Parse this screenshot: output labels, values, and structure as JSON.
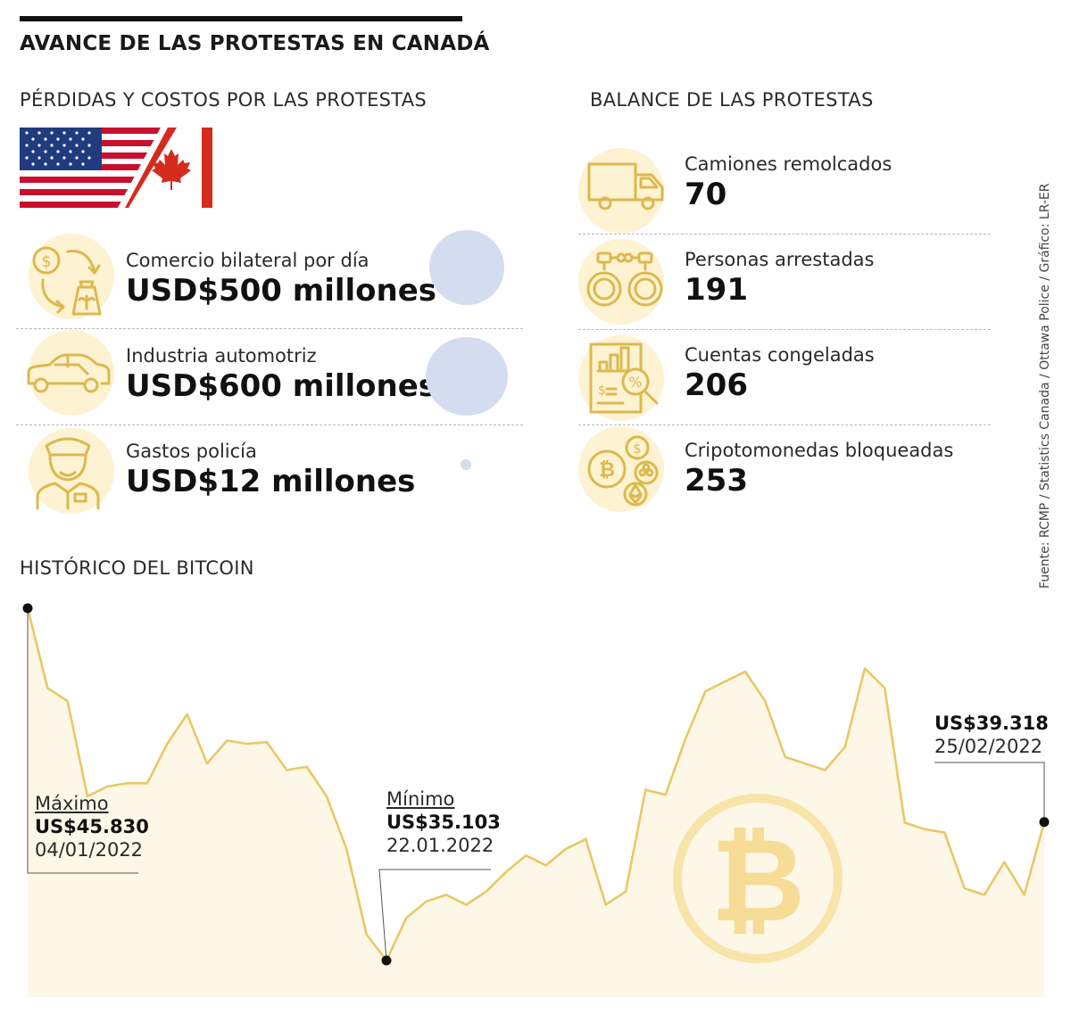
{
  "header": {
    "title": "AVANCE DE LAS PROTESTAS EN CANADÁ"
  },
  "left": {
    "heading": "PÉRDIDAS Y COSTOS POR LAS PROTESTAS",
    "items": [
      {
        "label": "Comercio bilateral por día",
        "value": "USD$500 millones",
        "icon": "trade-exchange-icon"
      },
      {
        "label": "Industria automotriz",
        "value": "USD$600 millones",
        "icon": "car-icon"
      },
      {
        "label": "Gastos policía",
        "value": "USD$12 millones",
        "icon": "police-officer-icon"
      }
    ]
  },
  "right": {
    "heading": "BALANCE DE LAS PROTESTAS",
    "items": [
      {
        "label": "Camiones remolcados",
        "value": "70",
        "icon": "truck-icon"
      },
      {
        "label": "Personas arrestadas",
        "value": "191",
        "icon": "handcuffs-icon"
      },
      {
        "label": "Cuentas congeladas",
        "value": "206",
        "icon": "frozen-accounts-document-icon"
      },
      {
        "label": "Cripotomonedas bloqueadas",
        "value": "253",
        "icon": "cryptocurrency-coins-icon"
      }
    ]
  },
  "source": "Fuente: RCMP / Statistics Canada / Ottawa Police / Gráfico: LR-ER",
  "colors": {
    "accent": "#e8c866",
    "fill": "#fdf7e7",
    "icon": "#dcb94e",
    "icon_bg": "#fdf2d2",
    "bubble": "#d3ddef"
  },
  "chart_data": {
    "type": "area",
    "title": "HISTÓRICO DEL BITCOIN",
    "xlabel": "",
    "ylabel": "",
    "grid": false,
    "x_range": [
      "04/01/2022",
      "25/02/2022"
    ],
    "y_unit": "US$",
    "values": [
      45830,
      43400,
      43000,
      40100,
      40400,
      40500,
      40500,
      41700,
      42600,
      41100,
      41800,
      41700,
      41750,
      40900,
      41000,
      40100,
      38500,
      35900,
      35103,
      36400,
      36900,
      37100,
      36800,
      37200,
      37800,
      38300,
      38000,
      38500,
      38800,
      36800,
      37200,
      40300,
      40150,
      41850,
      43300,
      43600,
      43900,
      43000,
      41300,
      41100,
      40900,
      41600,
      44000,
      43400,
      39300,
      39100,
      39000,
      37300,
      37100,
      38100,
      37100,
      39318
    ],
    "annotations": [
      {
        "name": "max",
        "title": "Máximo",
        "value": "US$45.830",
        "date": "04/01/2022",
        "index": 0
      },
      {
        "name": "min",
        "title": "Mínimo",
        "value": "US$35.103",
        "date": "22.01.2022",
        "index": 18
      },
      {
        "name": "last",
        "title": "",
        "value": "US$39.318",
        "date": "25/02/2022",
        "index": 51
      }
    ]
  }
}
